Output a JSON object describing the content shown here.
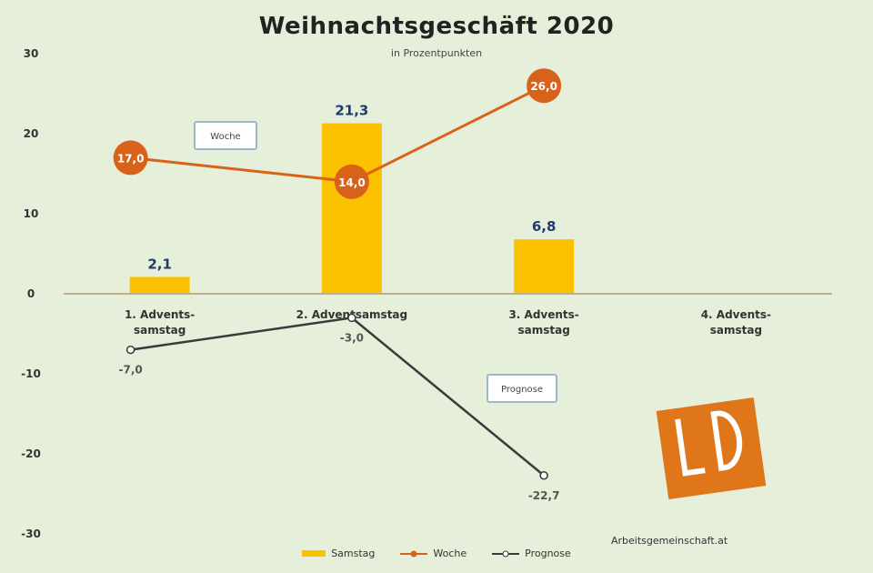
{
  "title": "Weihnachtsgeschäft 2020",
  "subtitle": "in Prozentpunkten",
  "source": "Arbeitsgemeinschaft.at",
  "colors": {
    "bar": "#fcc100",
    "woche": "#d9621b",
    "prognose": "#3a3a3a",
    "background": "#e6efd9"
  },
  "chart_data": {
    "type": "bar",
    "categories": [
      "1. Advents-samstag",
      "2. Adventsamstag",
      "3. Advents-samstag",
      "4. Advents-samstag"
    ],
    "ylim": [
      -30,
      30
    ],
    "yticks": [
      30,
      20,
      10,
      0,
      -10,
      -20,
      -30
    ],
    "series": [
      {
        "name": "Samstag",
        "type": "bar",
        "values": [
          2.1,
          21.3,
          6.8,
          null
        ],
        "labels": [
          "2,1",
          "21,3",
          "6,8",
          ""
        ]
      },
      {
        "name": "Woche",
        "type": "line",
        "values": [
          17.0,
          14.0,
          26.0,
          null
        ],
        "labels": [
          "17,0",
          "14,0",
          "26,0",
          ""
        ]
      },
      {
        "name": "Prognose",
        "type": "line",
        "values": [
          -7.0,
          -3.0,
          -22.7,
          null
        ],
        "labels": [
          "-7,0",
          "-3,0",
          "-22,7",
          ""
        ]
      }
    ],
    "annotations": [
      {
        "text": "Woche",
        "series": "Woche"
      },
      {
        "text": "Prognose",
        "series": "Prognose"
      }
    ],
    "legend": {
      "position": "bottom",
      "entries": [
        "Samstag",
        "Woche",
        "Prognose"
      ]
    },
    "grid": false
  }
}
